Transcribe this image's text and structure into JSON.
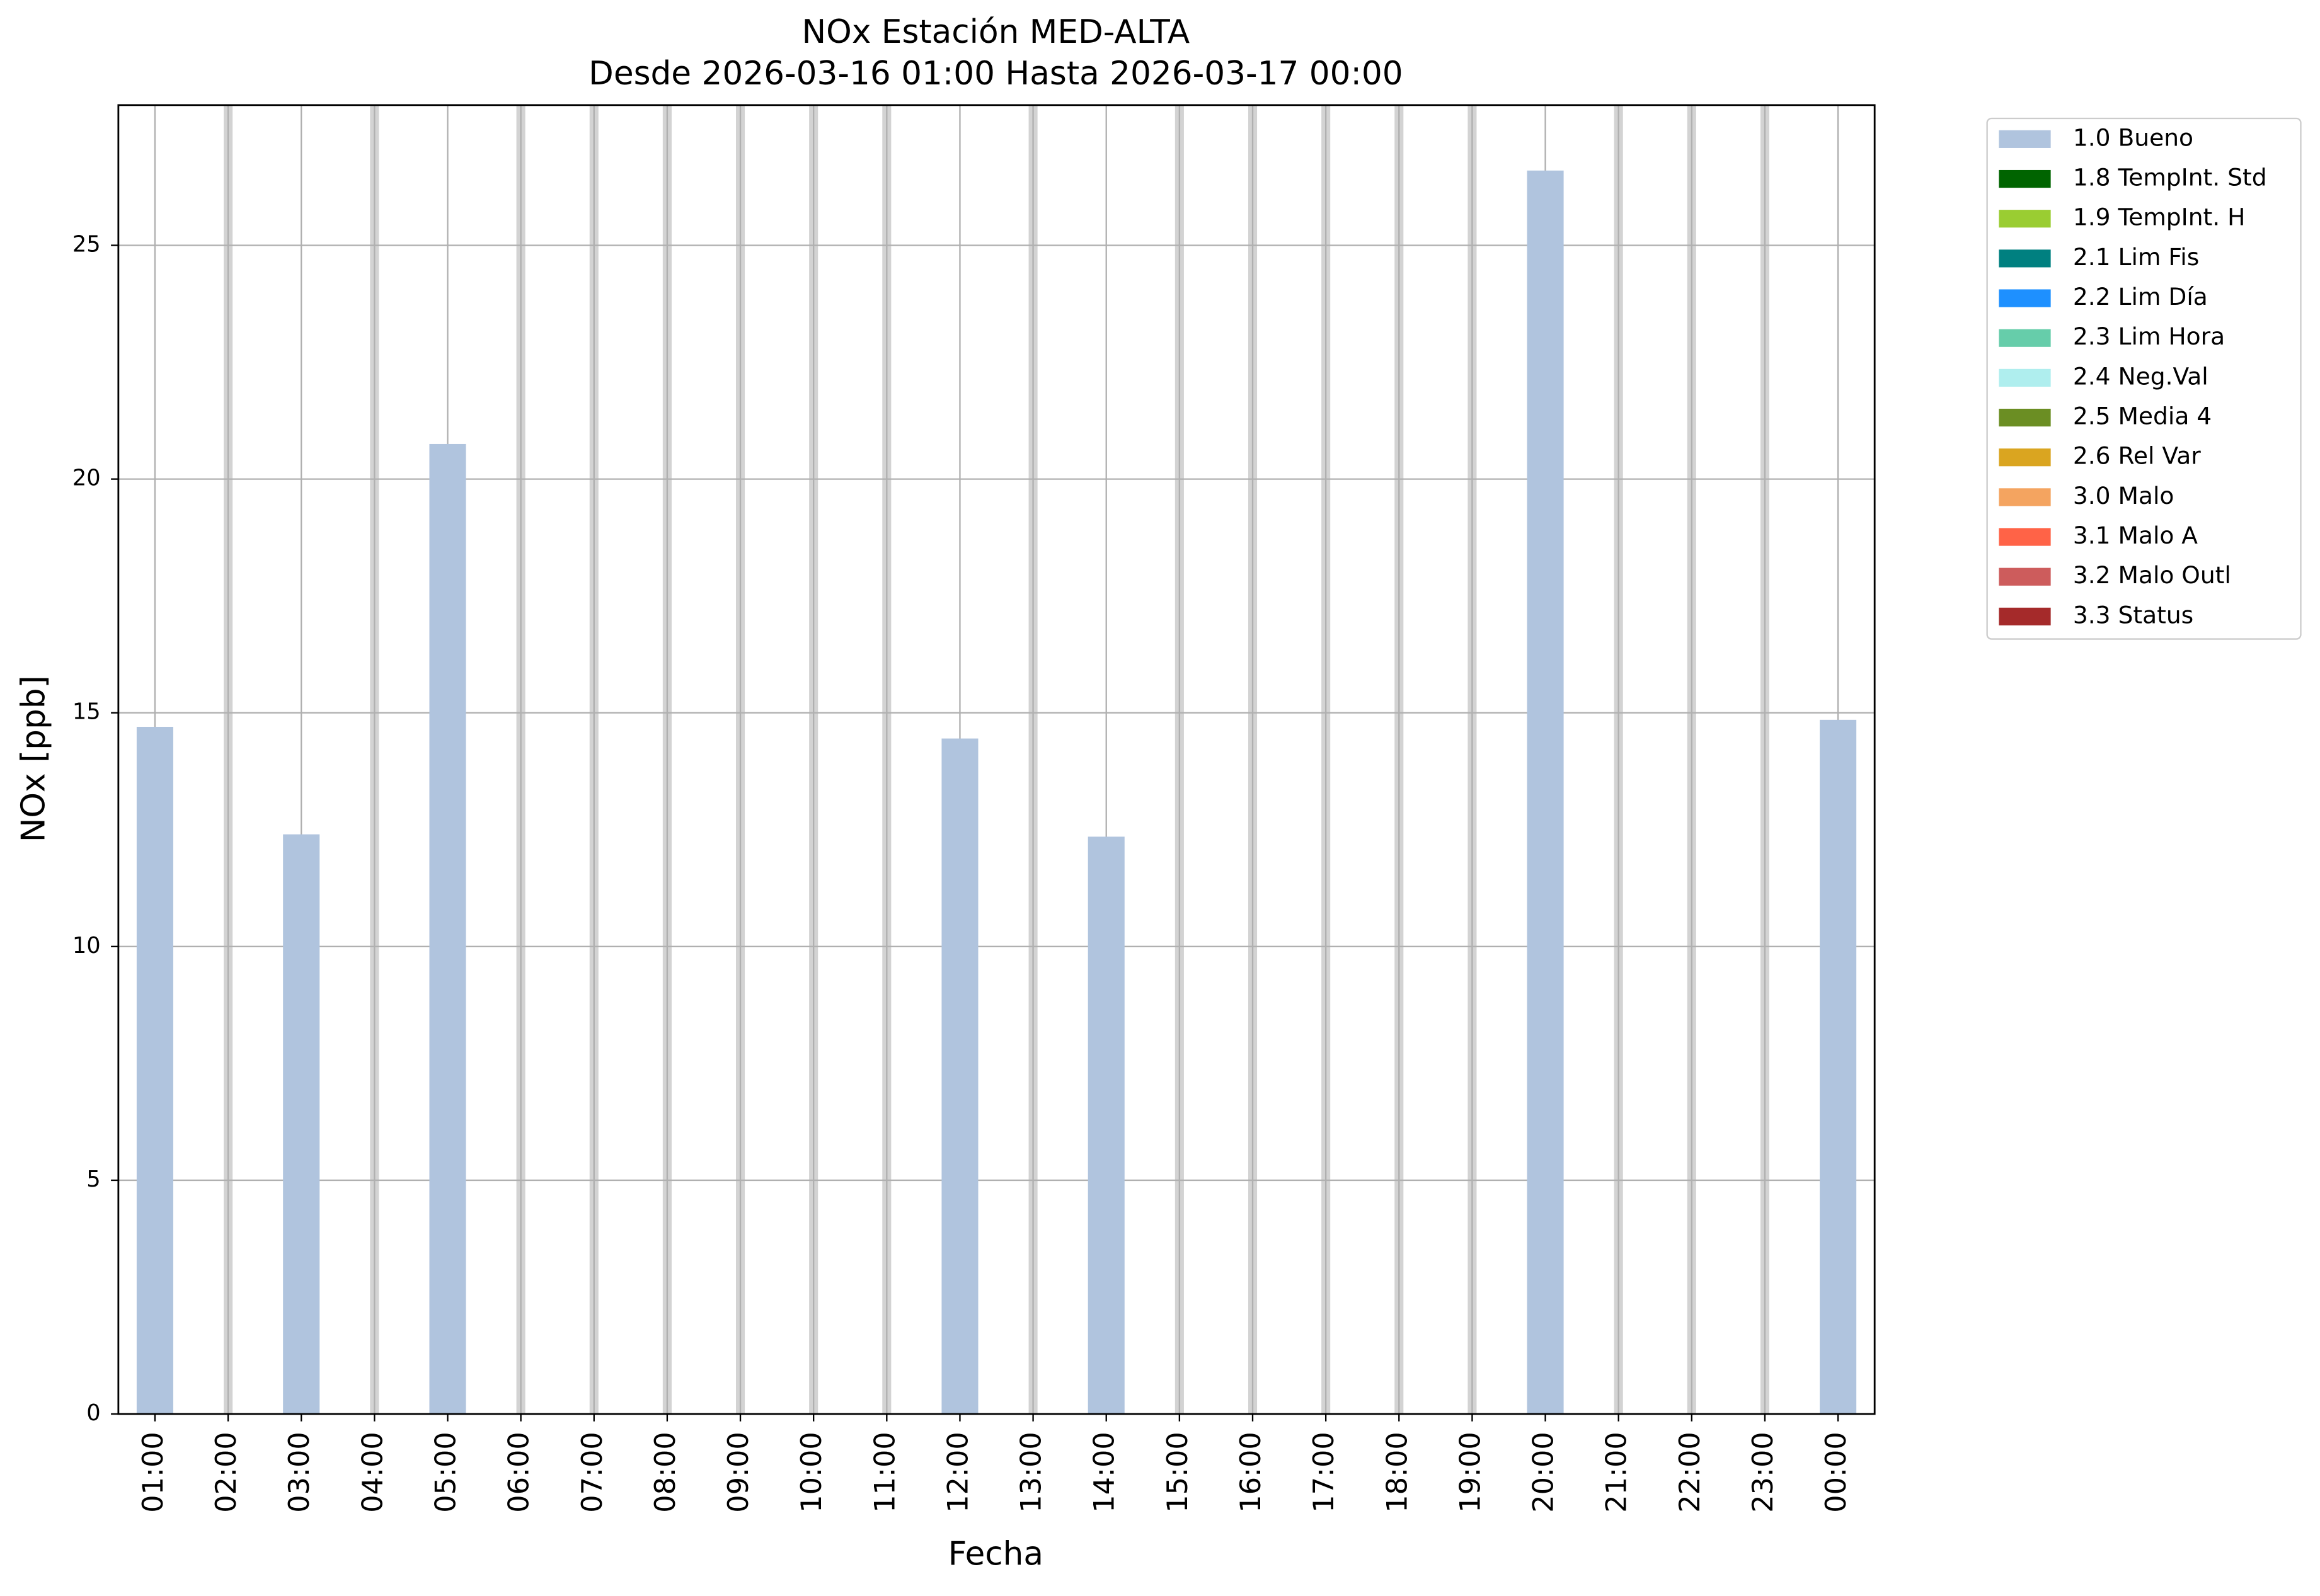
{
  "chart_data": {
    "type": "bar",
    "title": "NOx Estación MED-ALTA",
    "subtitle": "Desde 2026-03-16 01:00 Hasta 2026-03-17 00:00",
    "x_label": "Fecha",
    "y_label": "NOx [ppb]",
    "categories": [
      "01:00",
      "02:00",
      "03:00",
      "04:00",
      "05:00",
      "06:00",
      "07:00",
      "08:00",
      "09:00",
      "10:00",
      "11:00",
      "12:00",
      "13:00",
      "14:00",
      "15:00",
      "16:00",
      "17:00",
      "18:00",
      "19:00",
      "20:00",
      "21:00",
      "22:00",
      "23:00",
      "00:00"
    ],
    "series": [
      {
        "name": "1.0 Bueno",
        "color": "#b0c4de",
        "values": [
          14.7,
          null,
          12.4,
          null,
          20.75,
          null,
          null,
          null,
          null,
          null,
          null,
          14.45,
          null,
          12.35,
          null,
          null,
          null,
          null,
          null,
          26.6,
          null,
          null,
          null,
          14.85
        ]
      },
      {
        "name": "1.8 TempInt. Std",
        "color": "#006400",
        "values": [
          null,
          null,
          null,
          null,
          null,
          null,
          null,
          null,
          null,
          null,
          null,
          null,
          null,
          null,
          null,
          null,
          null,
          null,
          null,
          null,
          null,
          null,
          null,
          null
        ]
      },
      {
        "name": "1.9 TempInt. H",
        "color": "#9acd32",
        "values": [
          null,
          null,
          null,
          null,
          null,
          null,
          null,
          null,
          null,
          null,
          null,
          null,
          null,
          null,
          null,
          null,
          null,
          null,
          null,
          null,
          null,
          null,
          null,
          null
        ]
      },
      {
        "name": "2.1 Lim Fis",
        "color": "#008080",
        "values": [
          null,
          null,
          null,
          null,
          null,
          null,
          null,
          null,
          null,
          null,
          null,
          null,
          null,
          null,
          null,
          null,
          null,
          null,
          null,
          null,
          null,
          null,
          null,
          null
        ]
      },
      {
        "name": "2.2 Lim Día",
        "color": "#1e90ff",
        "values": [
          null,
          null,
          null,
          null,
          null,
          null,
          null,
          null,
          null,
          null,
          null,
          null,
          null,
          null,
          null,
          null,
          null,
          null,
          null,
          null,
          null,
          null,
          null,
          null
        ]
      },
      {
        "name": "2.3 Lim Hora",
        "color": "#66cdaa",
        "values": [
          null,
          null,
          null,
          null,
          null,
          null,
          null,
          null,
          null,
          null,
          null,
          null,
          null,
          null,
          null,
          null,
          null,
          null,
          null,
          null,
          null,
          null,
          null,
          null
        ]
      },
      {
        "name": "2.4 Neg.Val",
        "color": "#afeeee",
        "values": [
          null,
          null,
          null,
          null,
          null,
          null,
          null,
          null,
          null,
          null,
          null,
          null,
          null,
          null,
          null,
          null,
          null,
          null,
          null,
          null,
          null,
          null,
          null,
          null
        ]
      },
      {
        "name": "2.5 Media 4",
        "color": "#6b8e23",
        "values": [
          null,
          null,
          null,
          null,
          null,
          null,
          null,
          null,
          null,
          null,
          null,
          null,
          null,
          null,
          null,
          null,
          null,
          null,
          null,
          null,
          null,
          null,
          null,
          null
        ]
      },
      {
        "name": "2.6 Rel Var",
        "color": "#daa520",
        "values": [
          null,
          null,
          null,
          null,
          null,
          null,
          null,
          null,
          null,
          null,
          null,
          null,
          null,
          null,
          null,
          null,
          null,
          null,
          null,
          null,
          null,
          null,
          null,
          null
        ]
      },
      {
        "name": "3.0 Malo",
        "color": "#f4a460",
        "values": [
          null,
          null,
          null,
          null,
          null,
          null,
          null,
          null,
          null,
          null,
          null,
          null,
          null,
          null,
          null,
          null,
          null,
          null,
          null,
          null,
          null,
          null,
          null,
          null
        ]
      },
      {
        "name": "3.1 Malo A",
        "color": "#ff6347",
        "values": [
          null,
          null,
          null,
          null,
          null,
          null,
          null,
          null,
          null,
          null,
          null,
          null,
          null,
          null,
          null,
          null,
          null,
          null,
          null,
          null,
          null,
          null,
          null,
          null
        ]
      },
      {
        "name": "3.2 Malo Outl",
        "color": "#cd5c5c",
        "values": [
          null,
          null,
          null,
          null,
          null,
          null,
          null,
          null,
          null,
          null,
          null,
          null,
          null,
          null,
          null,
          null,
          null,
          null,
          null,
          null,
          null,
          null,
          null,
          null
        ]
      },
      {
        "name": "3.3 Status",
        "color": "#a52a2a",
        "values": [
          null,
          null,
          null,
          null,
          null,
          null,
          null,
          null,
          null,
          null,
          null,
          null,
          null,
          null,
          null,
          null,
          null,
          null,
          null,
          null,
          null,
          null,
          null,
          null
        ]
      }
    ],
    "ylim": [
      0,
      28
    ],
    "yticks": [
      0,
      5,
      10,
      15,
      20,
      25
    ],
    "grid": true,
    "legend": "outside upper right"
  }
}
